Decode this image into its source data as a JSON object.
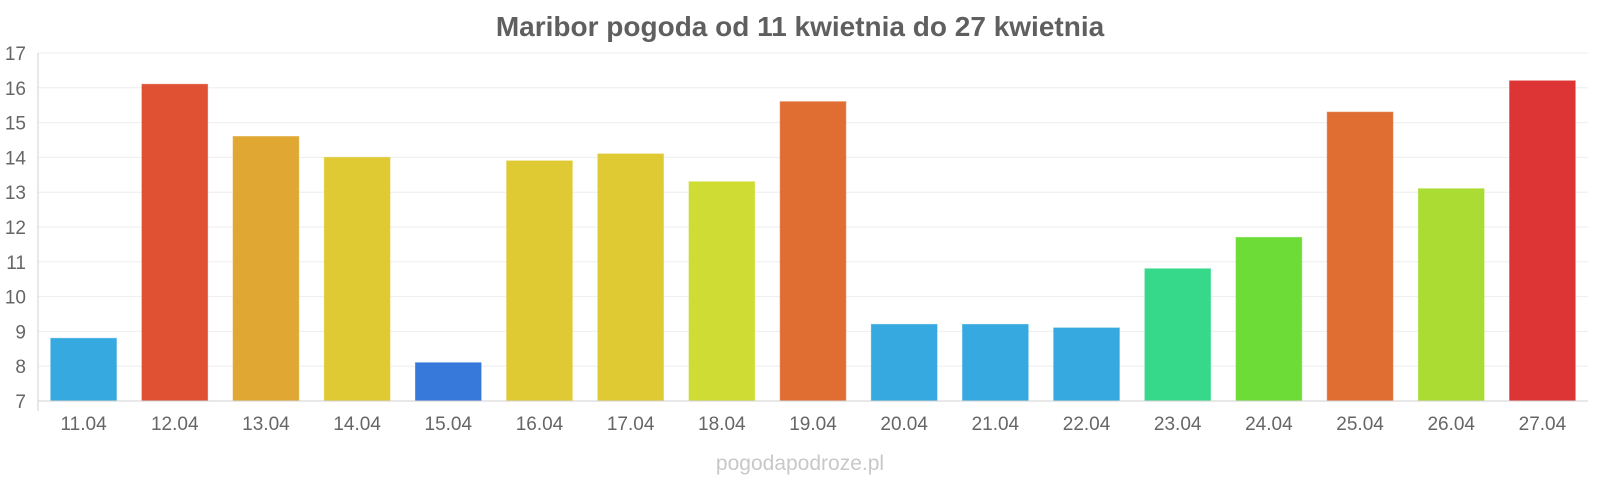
{
  "chart_data": {
    "type": "bar",
    "title": "Maribor pogoda od 11 kwietnia do 27 kwietnia",
    "xlabel": "",
    "ylabel": "",
    "ylim": [
      7,
      17
    ],
    "yticks": [
      7,
      8,
      9,
      10,
      11,
      12,
      13,
      14,
      15,
      16,
      17
    ],
    "grid": true,
    "legend": "none",
    "categories": [
      "11.04",
      "12.04",
      "13.04",
      "14.04",
      "15.04",
      "16.04",
      "17.04",
      "18.04",
      "19.04",
      "20.04",
      "21.04",
      "22.04",
      "23.04",
      "24.04",
      "25.04",
      "26.04",
      "27.04"
    ],
    "values": [
      8.8,
      16.1,
      14.6,
      14.0,
      8.1,
      13.9,
      14.1,
      13.3,
      15.6,
      9.2,
      9.2,
      9.1,
      10.8,
      11.7,
      15.3,
      13.1,
      16.2
    ],
    "colors": [
      "#36a9e1",
      "#e05133",
      "#e0a732",
      "#dfca34",
      "#3778db",
      "#dfca34",
      "#dfca34",
      "#cfdc34",
      "#e06e33",
      "#36a9e1",
      "#36a9e1",
      "#36a9e1",
      "#36d98a",
      "#6ddc36",
      "#e06e33",
      "#abdc34",
      "#dd3535"
    ]
  },
  "watermark": "pogodapodroze.pl"
}
